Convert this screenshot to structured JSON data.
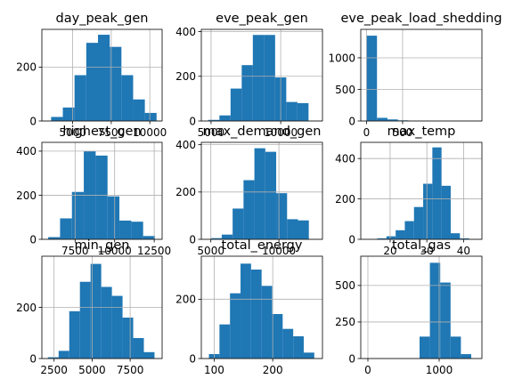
{
  "colors": {
    "bar": "#1f77b4",
    "grid": "#b0b0b0",
    "axis": "#000000",
    "background": "#ffffff"
  },
  "chart_data": [
    {
      "type": "bar",
      "title": "day_peak_gen",
      "xlim": [
        3000,
        10800
      ],
      "ylim": [
        0,
        340
      ],
      "bin_edges": [
        3600,
        4360,
        5120,
        5880,
        6640,
        7400,
        8160,
        8920,
        9680,
        10440
      ],
      "counts": [
        15,
        50,
        170,
        290,
        320,
        275,
        170,
        80,
        30
      ],
      "xticks": [
        5000,
        7500,
        10000
      ],
      "xtick_labels": [
        "5000",
        "7500",
        "10000"
      ],
      "yticks": [
        0,
        200
      ],
      "ytick_labels": [
        "0",
        "200"
      ],
      "grid": true
    },
    {
      "type": "bar",
      "title": "eve_peak_gen",
      "xlim": [
        4300,
        13000
      ],
      "ylim": [
        0,
        410
      ],
      "bin_edges": [
        4800,
        5600,
        6400,
        7200,
        8000,
        8800,
        9600,
        10400,
        11200,
        12000
      ],
      "counts": [
        5,
        25,
        145,
        250,
        385,
        385,
        195,
        85,
        80
      ],
      "xticks": [
        5000,
        10000
      ],
      "xtick_labels": [
        "5000",
        "10000"
      ],
      "yticks": [
        0,
        200,
        400
      ],
      "ytick_labels": [
        "0",
        "200",
        "400"
      ],
      "grid": true
    },
    {
      "type": "bar",
      "title": "eve_peak_load_shedding",
      "xlim": [
        -80,
        1600
      ],
      "ylim": [
        0,
        1450
      ],
      "bin_edges": [
        0,
        145,
        290,
        435,
        580,
        725,
        870,
        1015,
        1160,
        1305,
        1450
      ],
      "counts": [
        1350,
        50,
        25,
        10,
        3,
        1,
        1,
        0,
        0,
        0
      ],
      "xticks": [
        0,
        500
      ],
      "xtick_labels": [
        "0",
        "500"
      ],
      "yticks": [
        0,
        500,
        1000
      ],
      "ytick_labels": [
        "0",
        "500",
        "1000"
      ],
      "grid": true
    },
    {
      "type": "bar",
      "title": "highest_gen",
      "xlim": [
        5400,
        13000
      ],
      "ylim": [
        0,
        440
      ],
      "bin_edges": [
        5800,
        6550,
        7300,
        8050,
        8800,
        9550,
        10300,
        11050,
        11800,
        12550
      ],
      "counts": [
        10,
        95,
        215,
        400,
        380,
        195,
        85,
        80,
        15
      ],
      "xticks": [
        7500,
        10000,
        12500
      ],
      "xtick_labels": [
        "7500",
        "10000",
        "12500"
      ],
      "yticks": [
        0,
        200,
        400
      ],
      "ytick_labels": [
        "0",
        "200",
        "400"
      ],
      "grid": true
    },
    {
      "type": "bar",
      "title": "max_demand_gen",
      "xlim": [
        4300,
        13200
      ],
      "ylim": [
        0,
        410
      ],
      "bin_edges": [
        5000,
        5800,
        6600,
        7400,
        8200,
        9000,
        9800,
        10600,
        11400,
        12200
      ],
      "counts": [
        5,
        20,
        130,
        250,
        385,
        370,
        195,
        85,
        80
      ],
      "xticks": [
        5000,
        10000
      ],
      "xtick_labels": [
        "5000",
        "10000"
      ],
      "yticks": [
        0,
        200,
        400
      ],
      "ytick_labels": [
        "0",
        "200",
        "400"
      ],
      "grid": true
    },
    {
      "type": "bar",
      "title": "max_temp",
      "xlim": [
        12,
        45
      ],
      "ylim": [
        0,
        480
      ],
      "bin_edges": [
        16.5,
        19.0,
        21.5,
        24.0,
        26.5,
        29.0,
        31.5,
        34.0,
        36.5,
        39.0,
        41.5
      ],
      "counts": [
        5,
        15,
        45,
        90,
        160,
        275,
        455,
        265,
        30,
        5
      ],
      "xticks": [
        20,
        30,
        40
      ],
      "xtick_labels": [
        "20",
        "30",
        "40"
      ],
      "yticks": [
        0,
        200,
        400
      ],
      "ytick_labels": [
        "0",
        "200",
        "400"
      ],
      "grid": true
    },
    {
      "type": "bar",
      "title": "min_gen",
      "xlim": [
        1700,
        9600
      ],
      "ylim": [
        0,
        400
      ],
      "bin_edges": [
        2100,
        2800,
        3500,
        4200,
        4900,
        5600,
        6300,
        7000,
        7700,
        8400,
        9100
      ],
      "counts": [
        5,
        30,
        185,
        300,
        370,
        280,
        245,
        160,
        80,
        25
      ],
      "xticks": [
        2500,
        5000,
        7500
      ],
      "xtick_labels": [
        "2500",
        "5000",
        "7500"
      ],
      "yticks": [
        0,
        200
      ],
      "ytick_labels": [
        "0",
        "200"
      ],
      "grid": true
    },
    {
      "type": "bar",
      "title": "total_energy",
      "xlim": [
        78,
        285
      ],
      "ylim": [
        0,
        345
      ],
      "bin_edges": [
        91,
        109,
        127,
        145,
        163,
        181,
        199,
        217,
        235,
        253,
        271
      ],
      "counts": [
        15,
        115,
        220,
        320,
        300,
        245,
        150,
        100,
        75,
        20
      ],
      "xticks": [
        100,
        200
      ],
      "xtick_labels": [
        "100",
        "200"
      ],
      "yticks": [
        0,
        200
      ],
      "ytick_labels": [
        "0",
        "200"
      ],
      "grid": true
    },
    {
      "type": "bar",
      "title": "total_gas",
      "xlim": [
        -100,
        1600
      ],
      "ylim": [
        0,
        700
      ],
      "bin_edges": [
        0,
        145,
        290,
        435,
        580,
        725,
        870,
        1015,
        1160,
        1305,
        1450
      ],
      "counts": [
        2,
        0,
        0,
        0,
        0,
        150,
        655,
        520,
        150,
        30
      ],
      "xticks": [
        0,
        1000
      ],
      "xtick_labels": [
        "0",
        "1000"
      ],
      "yticks": [
        0,
        250,
        500
      ],
      "ytick_labels": [
        "0",
        "250",
        "500"
      ],
      "grid": true
    }
  ]
}
